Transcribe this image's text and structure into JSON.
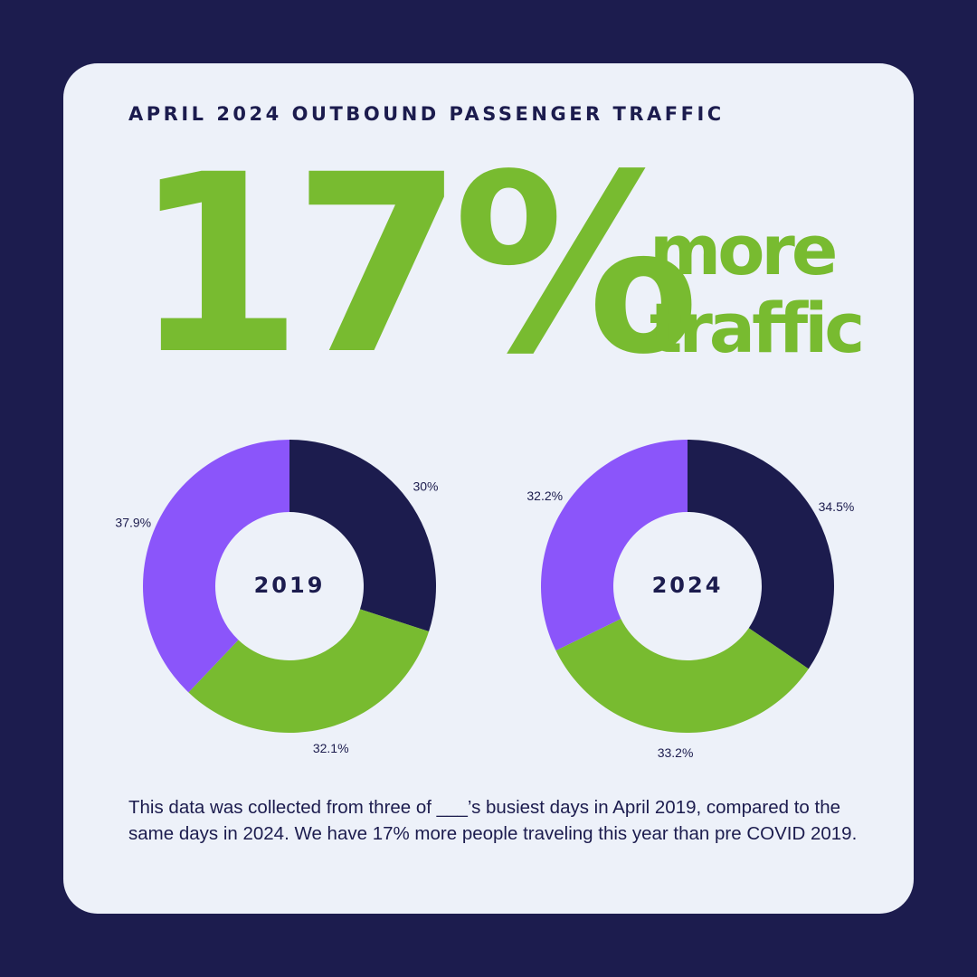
{
  "header": {
    "title": "APRIL 2024 OUTBOUND PASSENGER TRAFFIC"
  },
  "headline": {
    "value": "17%",
    "caption_line1": "more",
    "caption_line2": "traffic"
  },
  "colors": {
    "navy": "#1c1c4e",
    "green": "#78bb30",
    "purple": "#8b55fa",
    "card": "#edf1f9"
  },
  "chart_data": [
    {
      "type": "pie",
      "title": "2019",
      "slices": [
        {
          "value": 30.0,
          "label": "30%",
          "color": "#1c1c4e"
        },
        {
          "value": 32.1,
          "label": "32.1%",
          "color": "#78bb30"
        },
        {
          "value": 37.9,
          "label": "37.9%",
          "color": "#8b55fa"
        }
      ]
    },
    {
      "type": "pie",
      "title": "2024",
      "slices": [
        {
          "value": 34.5,
          "label": "34.5%",
          "color": "#1c1c4e"
        },
        {
          "value": 33.2,
          "label": "33.2%",
          "color": "#78bb30"
        },
        {
          "value": 32.2,
          "label": "32.2%",
          "color": "#8b55fa"
        }
      ]
    }
  ],
  "footnote": {
    "text": "This data was collected from three of ___’s busiest days in April 2019, compared to the same days in 2024. We have 17% more people traveling this year than pre COVID 2019."
  }
}
